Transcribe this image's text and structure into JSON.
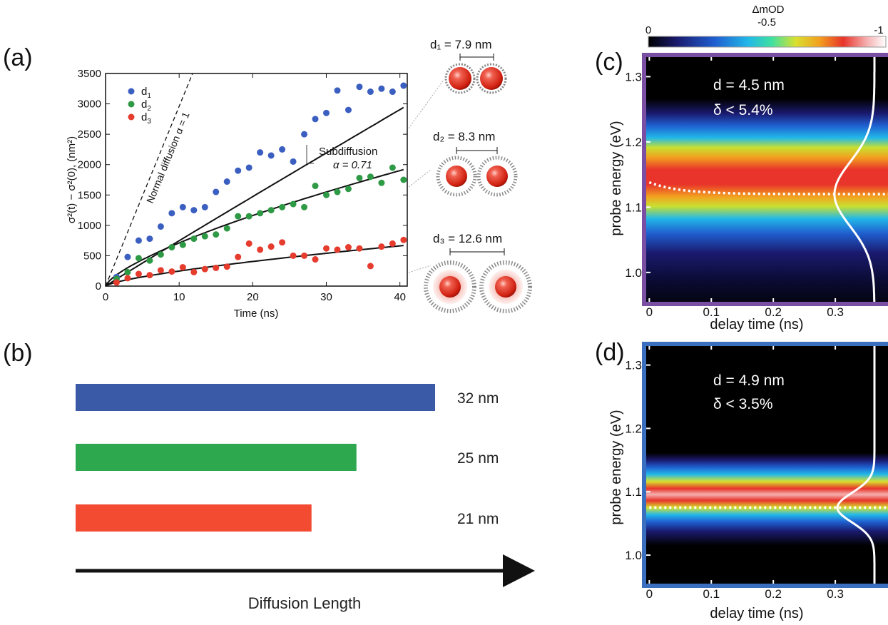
{
  "panels": {
    "a": "(a)",
    "b": "(b)",
    "c": "(c)",
    "d": "(d)"
  },
  "chart_data": [
    {
      "panel": "(a)",
      "type": "scatter",
      "xlabel": "Time (ns)",
      "ylabel": "σ²(t) − σ²(0), (nm²)",
      "xlim": [
        0,
        41
      ],
      "ylim": [
        0,
        3500
      ],
      "xticks": [
        0,
        10,
        20,
        30,
        40
      ],
      "yticks": [
        0,
        500,
        1000,
        1500,
        2000,
        2500,
        3000,
        3500
      ],
      "legend_position": "top-left",
      "series": [
        {
          "name": "d1",
          "color": "#3b5fc0",
          "x": [
            1.5,
            3,
            4.5,
            6,
            7.5,
            9,
            10.5,
            12,
            13.5,
            15,
            16.5,
            18,
            19.5,
            21,
            22.5,
            24,
            25.5,
            27,
            28.5,
            30,
            31.5,
            33,
            34.5,
            36,
            37.5,
            39,
            40.5
          ],
          "y": [
            150,
            480,
            750,
            780,
            980,
            1200,
            1300,
            1250,
            1300,
            1550,
            1720,
            1900,
            1950,
            2200,
            2150,
            2250,
            2050,
            2500,
            2750,
            2850,
            3220,
            2900,
            3280,
            3200,
            3250,
            3200,
            3300
          ],
          "fit": {
            "A": 78.2,
            "alpha": 1.0
          }
        },
        {
          "name": "d2",
          "color": "#2e9a45",
          "x": [
            1.5,
            3,
            4.5,
            6,
            7.5,
            9,
            10.5,
            12,
            13.5,
            15,
            16.5,
            18,
            19.5,
            21,
            22.5,
            24,
            25.5,
            27,
            28.5,
            30,
            31.5,
            33,
            34.5,
            36,
            37.5,
            39,
            40.5
          ],
          "y": [
            120,
            230,
            460,
            420,
            520,
            640,
            680,
            780,
            820,
            850,
            950,
            1150,
            1150,
            1200,
            1250,
            1300,
            1350,
            1300,
            1650,
            1500,
            1550,
            1600,
            1780,
            1800,
            1700,
            1950,
            1750
          ],
          "fit": {
            "A": 138.5,
            "alpha": 0.71
          }
        },
        {
          "name": "d3",
          "color": "#e63c2e",
          "x": [
            1.5,
            3,
            4.5,
            6,
            7.5,
            9,
            10.5,
            12,
            13.5,
            15,
            16.5,
            18,
            19.5,
            21,
            22.5,
            24,
            25.5,
            27,
            28.5,
            30,
            31.5,
            33,
            34.5,
            36,
            37.5,
            39,
            40.5
          ],
          "y": [
            60,
            130,
            200,
            180,
            260,
            240,
            310,
            230,
            280,
            300,
            320,
            480,
            700,
            600,
            650,
            720,
            500,
            500,
            440,
            620,
            600,
            640,
            620,
            330,
            650,
            700,
            760
          ],
          "fit": {
            "A": 48.3,
            "alpha": 0.71
          }
        }
      ],
      "annotations": [
        "Normal diffusion α = 1",
        "Subdiffusion",
        "α = 0.71"
      ],
      "particles": [
        "d₁ = 7.9 nm",
        "d₂ = 8.3 nm",
        "d₃ = 12.6 nm"
      ],
      "legend_labels": [
        {
          "base": "d",
          "sub": "1"
        },
        {
          "base": "d",
          "sub": "2"
        },
        {
          "base": "d",
          "sub": "3"
        }
      ]
    },
    {
      "panel": "(b)",
      "type": "bar",
      "orientation": "horizontal",
      "xlabel": "Diffusion Length",
      "values": [
        32,
        25,
        21
      ],
      "labels": [
        "32 nm",
        "25 nm",
        "21 nm"
      ],
      "colors": [
        "#3a5aa8",
        "#2ea84f",
        "#f24b32"
      ]
    },
    {
      "panel": "(c)",
      "type": "heatmap",
      "xlabel": "delay time (ns)",
      "ylabel": "probe energy (eV)",
      "xlim": [
        -0.005,
        0.385
      ],
      "ylim": [
        0.955,
        1.33
      ],
      "xticks": [
        "0",
        "0.1",
        "0.2",
        "0.3"
      ],
      "yticks": [
        "1.0",
        "1.1",
        "1.2",
        "1.3"
      ],
      "center_energy": 1.12,
      "width_energy": 0.07,
      "annotation": [
        "d = 4.5 nm",
        "δ < 5.4%"
      ],
      "frame_color": "#7a4ea3"
    },
    {
      "panel": "(d)",
      "type": "heatmap",
      "xlabel": "delay time (ns)",
      "ylabel": "probe energy (eV)",
      "xlim": [
        -0.005,
        0.385
      ],
      "ylim": [
        0.955,
        1.33
      ],
      "xticks": [
        "0",
        "0.1",
        "0.2",
        "0.3"
      ],
      "yticks": [
        "1.0",
        "1.1",
        "1.2",
        "1.3"
      ],
      "center_energy": 1.075,
      "width_energy": 0.033,
      "annotation": [
        "d = 4.9 nm",
        "δ < 3.5%"
      ],
      "frame_color": "#3a6fc0"
    }
  ],
  "colorbar": {
    "label": "ΔmOD",
    "ticks": [
      "0",
      "-0.5",
      "-1"
    ],
    "colors": [
      "#000000",
      "#1a1a6e",
      "#1f5fd0",
      "#22b8e8",
      "#3fe0a0",
      "#d8e030",
      "#f2a020",
      "#e8342a",
      "#f5b0b0",
      "#ffffff"
    ]
  }
}
